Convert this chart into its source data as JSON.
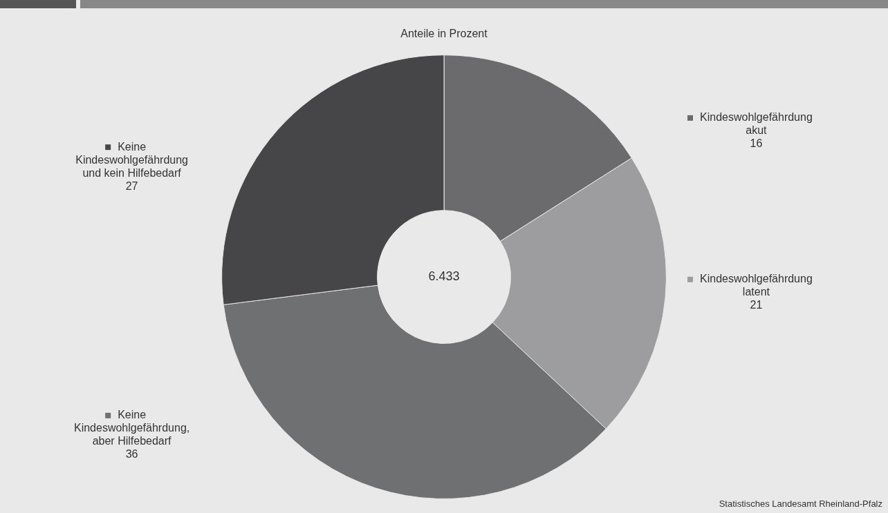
{
  "chart_data": {
    "type": "donut",
    "title": "Anteile in Prozent",
    "categories": [
      "Kindeswohlgefährdung akut",
      "Kindeswohlgefährdung latent",
      "Keine Kindeswohlgefährdung, aber Hilfebedarf",
      "Keine Kindeswohlgefährdung und kein Hilfebedarf"
    ],
    "values": [
      16,
      21,
      36,
      27
    ],
    "colors": [
      "#6b6b6d",
      "#9d9d9f",
      "#6f7072",
      "#464648"
    ],
    "data_labels": true,
    "legend": "right",
    "annotations": [
      "6.433",
      "Statistisches Landesamt Rheinland-Pfalz"
    ]
  }
}
